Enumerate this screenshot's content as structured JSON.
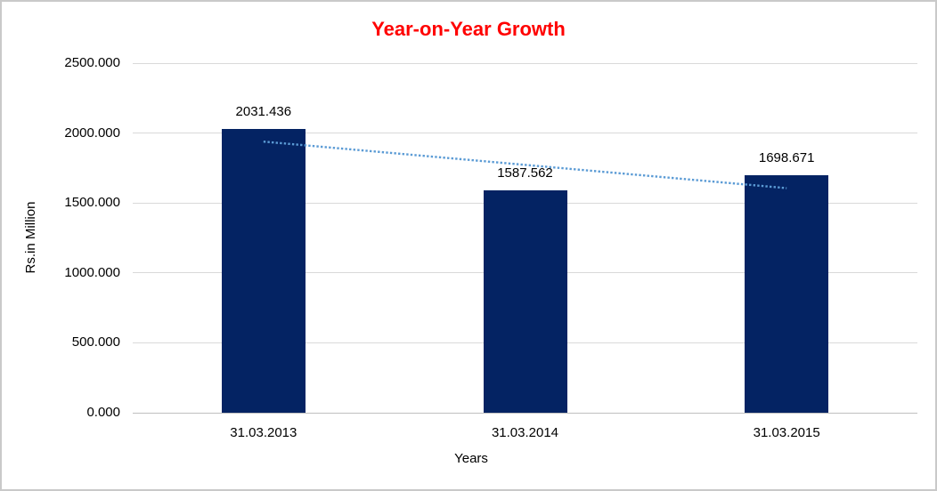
{
  "chart_data": {
    "type": "bar",
    "title": "Year-on-Year Growth",
    "title_color": "#FF0000",
    "xlabel": "Years",
    "ylabel": "Rs.in Million",
    "categories": [
      "31.03.2013",
      "31.03.2014",
      "31.03.2015"
    ],
    "values": [
      2031.436,
      1587.562,
      1698.671
    ],
    "data_labels": [
      "2031.436",
      "1587.562",
      "1698.671"
    ],
    "ylim": [
      0,
      2500
    ],
    "ytick_step": 500,
    "ytick_labels": [
      "0.000",
      "500.000",
      "1000.000",
      "1500.000",
      "2000.000",
      "2500.000"
    ],
    "grid": true,
    "legend": "none",
    "bar_color": "#042363",
    "gridline_color": "#D9D9D9",
    "axis_line_color": "#BFBFBF",
    "trendline": {
      "type": "linear",
      "style": "dotted",
      "color": "#5B9BD5"
    },
    "background": "#FFFFFF",
    "border_color": "#C9C9C9"
  }
}
